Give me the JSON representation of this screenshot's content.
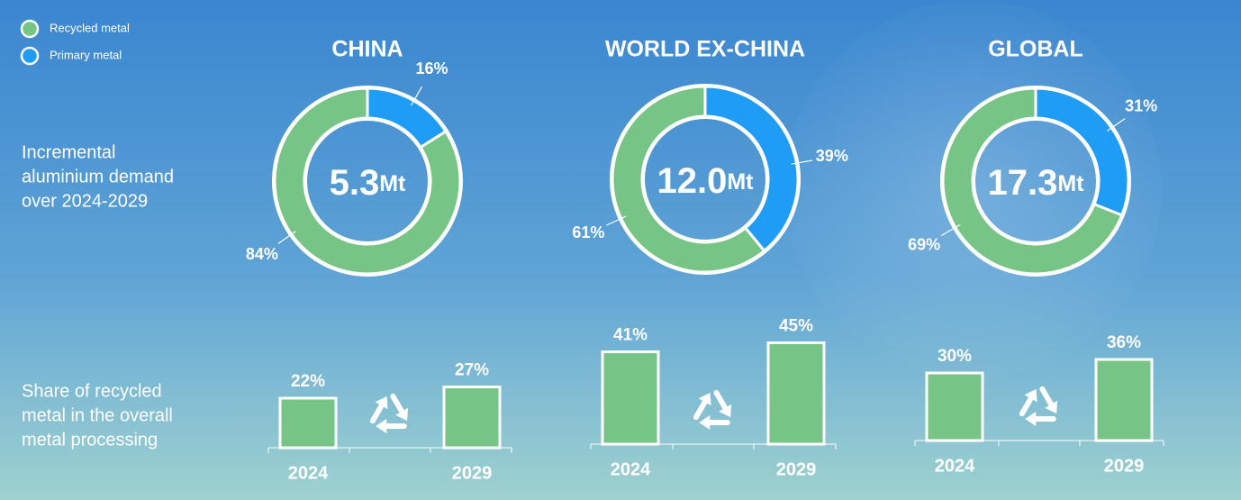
{
  "legend": [
    {
      "name": "Recycled metal",
      "color": "#77c487"
    },
    {
      "name": "Primary metal",
      "color": "#1f9cf5"
    }
  ],
  "row_labels": [
    [
      "Incremental",
      "aluminium demand",
      "over 2024-2029"
    ],
    [
      "Share of recycled",
      "metal in the overall",
      "metal processing"
    ]
  ],
  "chart_data": [
    {
      "type": "donut",
      "title": "CHINA",
      "center_value": 5.3,
      "unit": "Mt",
      "values": [
        84,
        16
      ],
      "value_labels": [
        "84%",
        "16%"
      ],
      "colors": [
        "#77c487",
        "#1f9cf5"
      ]
    },
    {
      "type": "donut",
      "title": "WORLD EX-CHINA",
      "center_value": {
        "value": 12,
        "label": "12.0"
      },
      "unit": "Mt",
      "values": [
        61,
        39
      ],
      "value_labels": [
        "61%",
        "39%"
      ],
      "colors": [
        "#77c487",
        "#1f9cf5"
      ]
    },
    {
      "type": "donut",
      "title": "GLOBAL",
      "center_value": 17.3,
      "unit": "Mt",
      "values": [
        69,
        31
      ],
      "value_labels": [
        "69%",
        "31%"
      ],
      "colors": [
        "#77c487",
        "#1f9cf5"
      ]
    },
    {
      "type": "bar",
      "categories": [
        "2024",
        "2029"
      ],
      "values": [
        22,
        27
      ],
      "value_labels": [
        "22%",
        "27%"
      ],
      "color": "#77c487"
    },
    {
      "type": "bar",
      "categories": [
        "2024",
        "2029"
      ],
      "values": [
        41,
        45
      ],
      "value_labels": [
        "41%",
        "45%"
      ],
      "color": "#77c487"
    },
    {
      "type": "bar",
      "categories": [
        "2024",
        "2029"
      ],
      "values": [
        30,
        36
      ],
      "value_labels": [
        "30%",
        "36%"
      ],
      "color": "#77c487"
    }
  ]
}
